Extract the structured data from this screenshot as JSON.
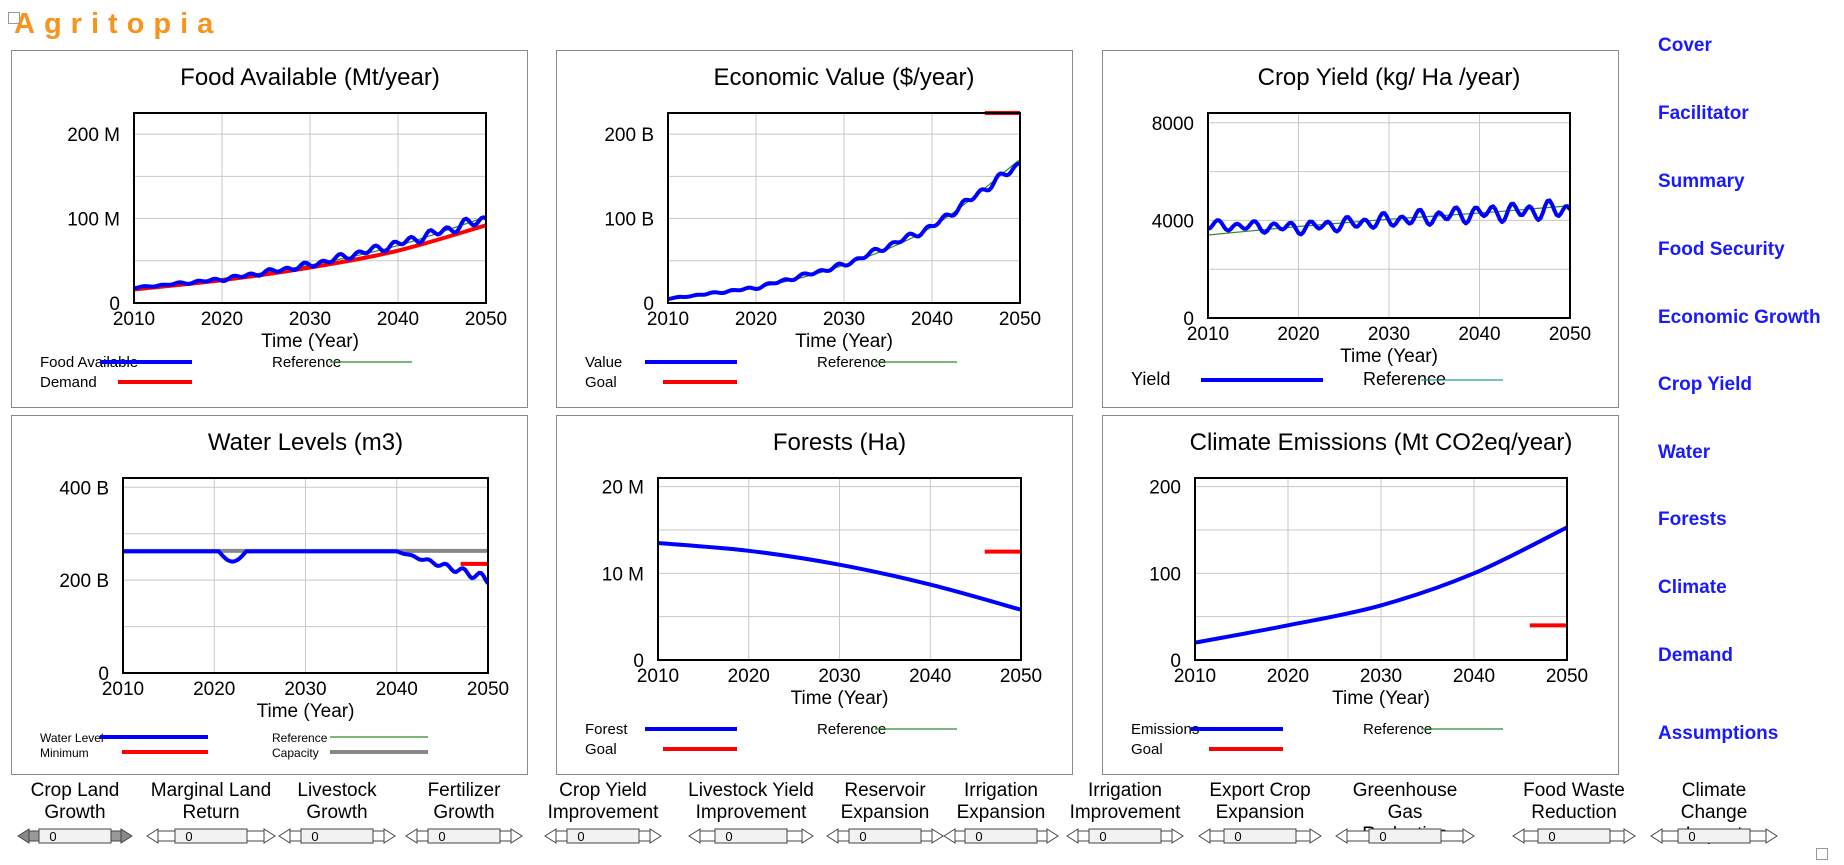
{
  "app_title": "Agritopia",
  "nav": [
    "Cover",
    "Facilitator",
    "Summary",
    "Food Security",
    "Economic Growth",
    "Crop Yield",
    "Water",
    "Forests",
    "Climate",
    "Demand",
    "Assumptions"
  ],
  "charts": [
    {
      "title": "Food Available (Mt/year)",
      "xlabel": "Time (Year)",
      "xticks": [
        "2010",
        "2020",
        "2030",
        "2040",
        "2050"
      ],
      "yticks": [
        {
          "v": 0,
          "t": "0"
        },
        {
          "v": 100,
          "t": "100 M"
        },
        {
          "v": 200,
          "t": "200 M"
        }
      ],
      "ylim": [
        0,
        225
      ],
      "legend": [
        {
          "label": "Food Available",
          "color": "#0000ff",
          "col": 0
        },
        {
          "label": "Reference",
          "color": "#2e8b2e",
          "col": 1
        },
        {
          "label": "Demand",
          "color": "#ff0000",
          "col": 0
        }
      ],
      "series": [
        {
          "name": "Reference",
          "color": "#2e8b2e",
          "width": 1.2,
          "kind": "smooth",
          "pts": [
            [
              2010,
              17
            ],
            [
              2020,
              29
            ],
            [
              2030,
              45
            ],
            [
              2040,
              68
            ],
            [
              2050,
              102
            ]
          ]
        },
        {
          "name": "Demand",
          "color": "#ff0000",
          "width": 4,
          "kind": "smooth",
          "pts": [
            [
              2010,
              16
            ],
            [
              2020,
              27
            ],
            [
              2030,
              42
            ],
            [
              2040,
              62
            ],
            [
              2050,
              92
            ]
          ]
        },
        {
          "name": "Food Available",
          "color": "#0000ff",
          "width": 4,
          "kind": "wavy",
          "amp": [
            0.4,
            5
          ],
          "pts": [
            [
              2010,
              18
            ],
            [
              2020,
              28
            ],
            [
              2030,
              45
            ],
            [
              2040,
              70
            ],
            [
              2050,
              100
            ]
          ]
        }
      ]
    },
    {
      "title": "Economic Value ($/year)",
      "xlabel": "Time (Year)",
      "xticks": [
        "2010",
        "2020",
        "2030",
        "2040",
        "2050"
      ],
      "yticks": [
        {
          "v": 0,
          "t": "0"
        },
        {
          "v": 100,
          "t": "100 B"
        },
        {
          "v": 200,
          "t": "200 B"
        }
      ],
      "ylim": [
        0,
        225
      ],
      "legend": [
        {
          "label": "Value",
          "color": "#0000ff",
          "col": 0
        },
        {
          "label": "Reference",
          "color": "#2e8b2e",
          "col": 1
        },
        {
          "label": "Goal",
          "color": "#ff0000",
          "col": 0
        }
      ],
      "series": [
        {
          "name": "Reference",
          "color": "#2e8b2e",
          "width": 1.2,
          "kind": "smooth",
          "pts": [
            [
              2010,
              5
            ],
            [
              2020,
              18
            ],
            [
              2030,
              45
            ],
            [
              2040,
              90
            ],
            [
              2050,
              170
            ]
          ]
        },
        {
          "name": "Value",
          "color": "#0000ff",
          "width": 4,
          "kind": "wavy",
          "amp": [
            0.3,
            4
          ],
          "pts": [
            [
              2010,
              5
            ],
            [
              2020,
              18
            ],
            [
              2030,
              45
            ],
            [
              2040,
              90
            ],
            [
              2050,
              165
            ]
          ]
        },
        {
          "name": "Goal",
          "color": "#ff0000",
          "width": 4,
          "kind": "segment",
          "pts": [
            [
              2046,
              225
            ],
            [
              2050,
              225
            ]
          ]
        }
      ]
    },
    {
      "title": "Crop Yield (kg/ Ha /year)",
      "xlabel": "Time (Year)",
      "xticks": [
        "2010",
        "2020",
        "2030",
        "2040",
        "2050"
      ],
      "yticks": [
        {
          "v": 0,
          "t": "0"
        },
        {
          "v": 4000,
          "t": "4000"
        },
        {
          "v": 8000,
          "t": "8000"
        }
      ],
      "ylim": [
        0,
        8400
      ],
      "legend": [
        {
          "label": "Yield",
          "color": "#0000ff",
          "col": 0
        },
        {
          "label": "Reference",
          "color": "#2a9d8f",
          "col": 1
        }
      ],
      "series": [
        {
          "name": "Reference",
          "color": "#2e8b2e",
          "width": 1.2,
          "kind": "smooth",
          "pts": [
            [
              2010,
              3400
            ],
            [
              2020,
              3750
            ],
            [
              2030,
              4050
            ],
            [
              2040,
              4300
            ],
            [
              2050,
              4600
            ]
          ]
        },
        {
          "name": "Yield",
          "color": "#0000ff",
          "width": 4,
          "kind": "wavy",
          "amp": [
            150,
            300
          ],
          "pts": [
            [
              2010,
              3800
            ],
            [
              2020,
              3700
            ],
            [
              2030,
              4000
            ],
            [
              2040,
              4300
            ],
            [
              2050,
              4450
            ]
          ]
        }
      ]
    },
    {
      "title": "Water Levels (m3)",
      "xlabel": "Time (Year)",
      "xticks": [
        "2010",
        "2020",
        "2030",
        "2040",
        "2050"
      ],
      "yticks": [
        {
          "v": 0,
          "t": "0"
        },
        {
          "v": 200,
          "t": "200 B"
        },
        {
          "v": 400,
          "t": "400 B"
        }
      ],
      "ylim": [
        0,
        420
      ],
      "legend": [
        {
          "label": "Water Level",
          "color": "#0000ff",
          "col": 0
        },
        {
          "label": "Reference",
          "color": "#2e8b2e",
          "col": 1
        },
        {
          "label": "Minimum",
          "color": "#ff0000",
          "col": 0
        },
        {
          "label": "Capacity",
          "color": "#888888",
          "col": 1
        }
      ],
      "series": [
        {
          "name": "Reference",
          "color": "#2e8b2e",
          "width": 1.2,
          "kind": "smooth",
          "pts": [
            [
              2010,
              262
            ],
            [
              2050,
              262
            ]
          ]
        },
        {
          "name": "Capacity",
          "color": "#888888",
          "width": 4,
          "kind": "smooth",
          "pts": [
            [
              2010,
              263
            ],
            [
              2050,
              263
            ]
          ]
        },
        {
          "name": "Minimum",
          "color": "#ff0000",
          "width": 4,
          "kind": "segment",
          "pts": [
            [
              2047,
              235
            ],
            [
              2050,
              235
            ]
          ]
        },
        {
          "name": "Water Level",
          "color": "#0000ff",
          "width": 4,
          "kind": "water",
          "pts": [
            [
              2010,
              262
            ],
            [
              2050,
              262
            ]
          ]
        }
      ]
    },
    {
      "title": "Forests (Ha)",
      "xlabel": "Time (Year)",
      "xticks": [
        "2010",
        "2020",
        "2030",
        "2040",
        "2050"
      ],
      "yticks": [
        {
          "v": 0,
          "t": "0"
        },
        {
          "v": 10,
          "t": "10 M"
        },
        {
          "v": 20,
          "t": "20 M"
        }
      ],
      "ylim": [
        0,
        21
      ],
      "legend": [
        {
          "label": "Forest",
          "color": "#0000ff",
          "col": 0
        },
        {
          "label": "Reference",
          "color": "#2e8b2e",
          "col": 1
        },
        {
          "label": "Goal",
          "color": "#ff0000",
          "col": 0
        }
      ],
      "series": [
        {
          "name": "Goal",
          "color": "#ff0000",
          "width": 4,
          "kind": "segment",
          "pts": [
            [
              2046,
              12.5
            ],
            [
              2050,
              12.5
            ]
          ]
        },
        {
          "name": "Forest",
          "color": "#0000ff",
          "width": 4,
          "kind": "smooth",
          "pts": [
            [
              2010,
              13.5
            ],
            [
              2020,
              12.6
            ],
            [
              2030,
              11
            ],
            [
              2040,
              8.7
            ],
            [
              2050,
              5.8
            ]
          ]
        }
      ]
    },
    {
      "title": "Climate Emissions (Mt CO2eq/year)",
      "xlabel": "Time (Year)",
      "xticks": [
        "2010",
        "2020",
        "2030",
        "2040",
        "2050"
      ],
      "yticks": [
        {
          "v": 0,
          "t": "0"
        },
        {
          "v": 100,
          "t": "100"
        },
        {
          "v": 200,
          "t": "200"
        }
      ],
      "ylim": [
        0,
        210
      ],
      "legend": [
        {
          "label": "Emissions",
          "color": "#0000ff",
          "col": 0
        },
        {
          "label": "Reference",
          "color": "#2e8b2e",
          "col": 1
        },
        {
          "label": "Goal",
          "color": "#ff0000",
          "col": 0
        }
      ],
      "series": [
        {
          "name": "Goal",
          "color": "#ff0000",
          "width": 4,
          "kind": "segment",
          "pts": [
            [
              2046,
              40
            ],
            [
              2050,
              40
            ]
          ]
        },
        {
          "name": "Emissions",
          "color": "#0000ff",
          "width": 4,
          "kind": "smooth",
          "pts": [
            [
              2010,
              20
            ],
            [
              2020,
              40
            ],
            [
              2030,
              63
            ],
            [
              2040,
              100
            ],
            [
              2050,
              153
            ]
          ]
        }
      ]
    }
  ],
  "sliders": [
    {
      "label": "Crop Land\nGrowth",
      "value": "0",
      "highlight": true
    },
    {
      "label": "Marginal Land\nReturn",
      "value": "0"
    },
    {
      "label": "Livestock\nGrowth",
      "value": "0"
    },
    {
      "label": "Fertilizer\nGrowth",
      "value": "0"
    },
    {
      "label": "Crop Yield\nImprovement",
      "value": "0"
    },
    {
      "label": "Livestock Yield\nImprovement",
      "value": "0"
    },
    {
      "label": "Reservoir\nExpansion",
      "value": "0"
    },
    {
      "label": "Irrigation\nExpansion",
      "value": "0"
    },
    {
      "label": "Irrigation\nImprovement",
      "value": "0"
    },
    {
      "label": "Export Crop\nExpansion",
      "value": "0"
    },
    {
      "label": "Greenhouse Gas\nReduction",
      "value": "0"
    },
    {
      "label": "Food Waste\nReduction",
      "value": "0"
    },
    {
      "label": "Climate Change\nImpact",
      "value": "0"
    }
  ]
}
